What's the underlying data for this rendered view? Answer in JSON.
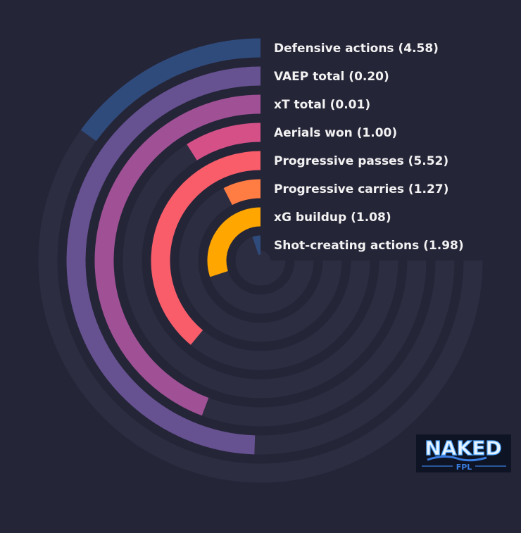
{
  "chart_data": {
    "type": "radial_bar",
    "title": "",
    "bars": [
      {
        "label": "Defensive actions (4.58)",
        "fraction": 0.2,
        "color": "#2f4b7c"
      },
      {
        "label": "VAEP total (0.20)",
        "fraction": 0.66,
        "color": "#665191"
      },
      {
        "label": "xT total (0.01)",
        "fraction": 0.59,
        "color": "#a05195"
      },
      {
        "label": "Aerials won (1.00)",
        "fraction": 0.12,
        "color": "#d45087"
      },
      {
        "label": "Progressive passes (5.52)",
        "fraction": 0.52,
        "color": "#f95d6a"
      },
      {
        "label": "Progressive carries (1.27)",
        "fraction": 0.1,
        "color": "#ff7c43"
      },
      {
        "label": "xG buildup (1.08)",
        "fraction": 0.4,
        "color": "#ffa600"
      },
      {
        "label": "Shot-creating actions (1.98)",
        "fraction": 0.07,
        "color": "#2f4b7c"
      }
    ],
    "track_color": "#2d2d42",
    "background": "#252538"
  },
  "logo": {
    "text_main": "NAKED",
    "text_sub": "FPL"
  }
}
